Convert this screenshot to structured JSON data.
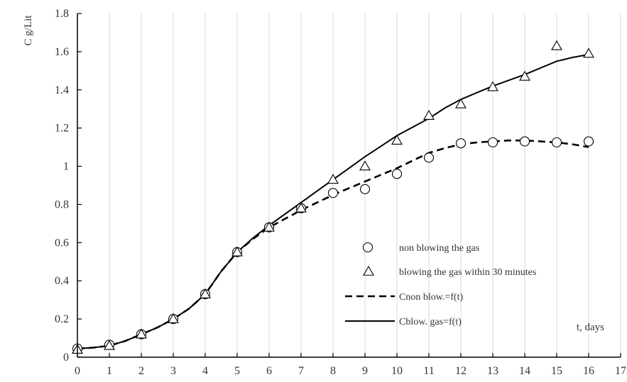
{
  "chart_data": {
    "type": "line",
    "xlabel": "t, days",
    "ylabel": "C g/Lit",
    "xlim": [
      0,
      17
    ],
    "ylim": [
      0,
      1.8
    ],
    "x_ticks": [
      0,
      1,
      2,
      3,
      4,
      5,
      6,
      7,
      8,
      9,
      10,
      11,
      12,
      13,
      14,
      15,
      16,
      17
    ],
    "y_ticks": [
      "0",
      "0.2",
      "0.4",
      "0.6",
      "0.8",
      "1",
      "1.2",
      "1.4",
      "1.6",
      "1.8"
    ],
    "grid": "vertical",
    "legend_position": "center-right",
    "series": [
      {
        "name": "non blowing the gas",
        "marker": "circle",
        "x": [
          0,
          1,
          2,
          3,
          4,
          5,
          6,
          7,
          8,
          9,
          10,
          11,
          12,
          13,
          14,
          15,
          16
        ],
        "y": [
          0.045,
          0.065,
          0.12,
          0.2,
          0.33,
          0.55,
          0.68,
          0.78,
          0.86,
          0.88,
          0.96,
          1.045,
          1.12,
          1.125,
          1.13,
          1.125,
          1.13
        ]
      },
      {
        "name": "blowing the gas within 30 minutes",
        "marker": "triangle",
        "x": [
          0,
          1,
          2,
          3,
          4,
          5,
          6,
          7,
          8,
          9,
          10,
          11,
          12,
          13,
          14,
          15,
          16
        ],
        "y": [
          0.04,
          0.06,
          0.12,
          0.2,
          0.33,
          0.55,
          0.68,
          0.78,
          0.93,
          1.0,
          1.135,
          1.265,
          1.325,
          1.415,
          1.47,
          1.63,
          1.59
        ]
      },
      {
        "name": "Cnon blow.=f(t)",
        "style": "dashed",
        "x": [
          0,
          0.5,
          1,
          1.5,
          2,
          2.5,
          3,
          3.5,
          4,
          4.5,
          5,
          5.5,
          6,
          6.5,
          7,
          7.5,
          8,
          8.5,
          9,
          9.5,
          10,
          10.5,
          11,
          11.5,
          12,
          12.5,
          13,
          13.5,
          14,
          14.5,
          15,
          15.5,
          16
        ],
        "y": [
          0.045,
          0.05,
          0.06,
          0.085,
          0.12,
          0.155,
          0.2,
          0.255,
          0.33,
          0.45,
          0.55,
          0.62,
          0.68,
          0.725,
          0.77,
          0.81,
          0.85,
          0.885,
          0.92,
          0.955,
          0.99,
          1.03,
          1.07,
          1.095,
          1.115,
          1.125,
          1.13,
          1.135,
          1.135,
          1.13,
          1.125,
          1.115,
          1.1
        ]
      },
      {
        "name": "Cblow. gas=f(t)",
        "style": "solid",
        "x": [
          0,
          0.5,
          1,
          1.5,
          2,
          2.5,
          3,
          3.5,
          4,
          4.5,
          5,
          5.5,
          6,
          6.5,
          7,
          7.5,
          8,
          8.5,
          9,
          9.5,
          10,
          10.5,
          11,
          11.5,
          12,
          12.5,
          13,
          13.5,
          14,
          14.5,
          15,
          15.5,
          16
        ],
        "y": [
          0.045,
          0.05,
          0.06,
          0.085,
          0.12,
          0.155,
          0.2,
          0.255,
          0.33,
          0.45,
          0.55,
          0.625,
          0.69,
          0.75,
          0.81,
          0.87,
          0.93,
          0.99,
          1.05,
          1.105,
          1.16,
          1.205,
          1.25,
          1.305,
          1.35,
          1.385,
          1.42,
          1.45,
          1.48,
          1.515,
          1.55,
          1.57,
          1.585
        ]
      }
    ]
  }
}
